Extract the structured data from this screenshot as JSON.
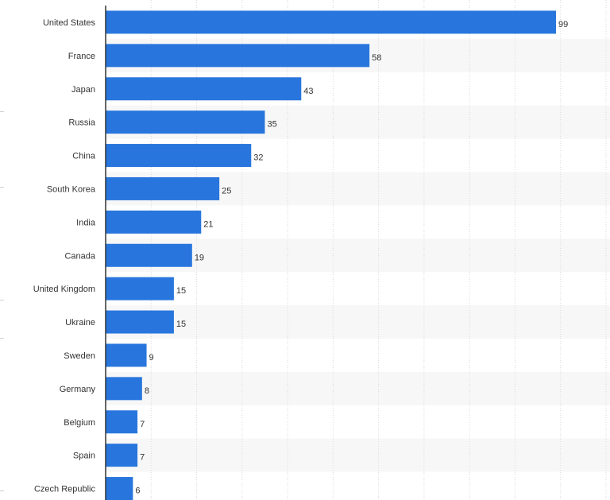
{
  "chart_data": {
    "type": "bar",
    "orientation": "horizontal",
    "categories": [
      "United States",
      "France",
      "Japan",
      "Russia",
      "China",
      "South Korea",
      "India",
      "Canada",
      "United Kingdom",
      "Ukraine",
      "Sweden",
      "Germany",
      "Belgium",
      "Spain",
      "Czech Republic"
    ],
    "values": [
      99,
      58,
      43,
      35,
      32,
      25,
      21,
      19,
      15,
      15,
      9,
      8,
      7,
      7,
      6
    ],
    "xlim": [
      0,
      110
    ],
    "grid": true,
    "legend": "none",
    "colors": {
      "bar": "#2876dd",
      "band": "#f7f7f7",
      "grid": "#d9d9d9",
      "axis": "#333333"
    }
  }
}
